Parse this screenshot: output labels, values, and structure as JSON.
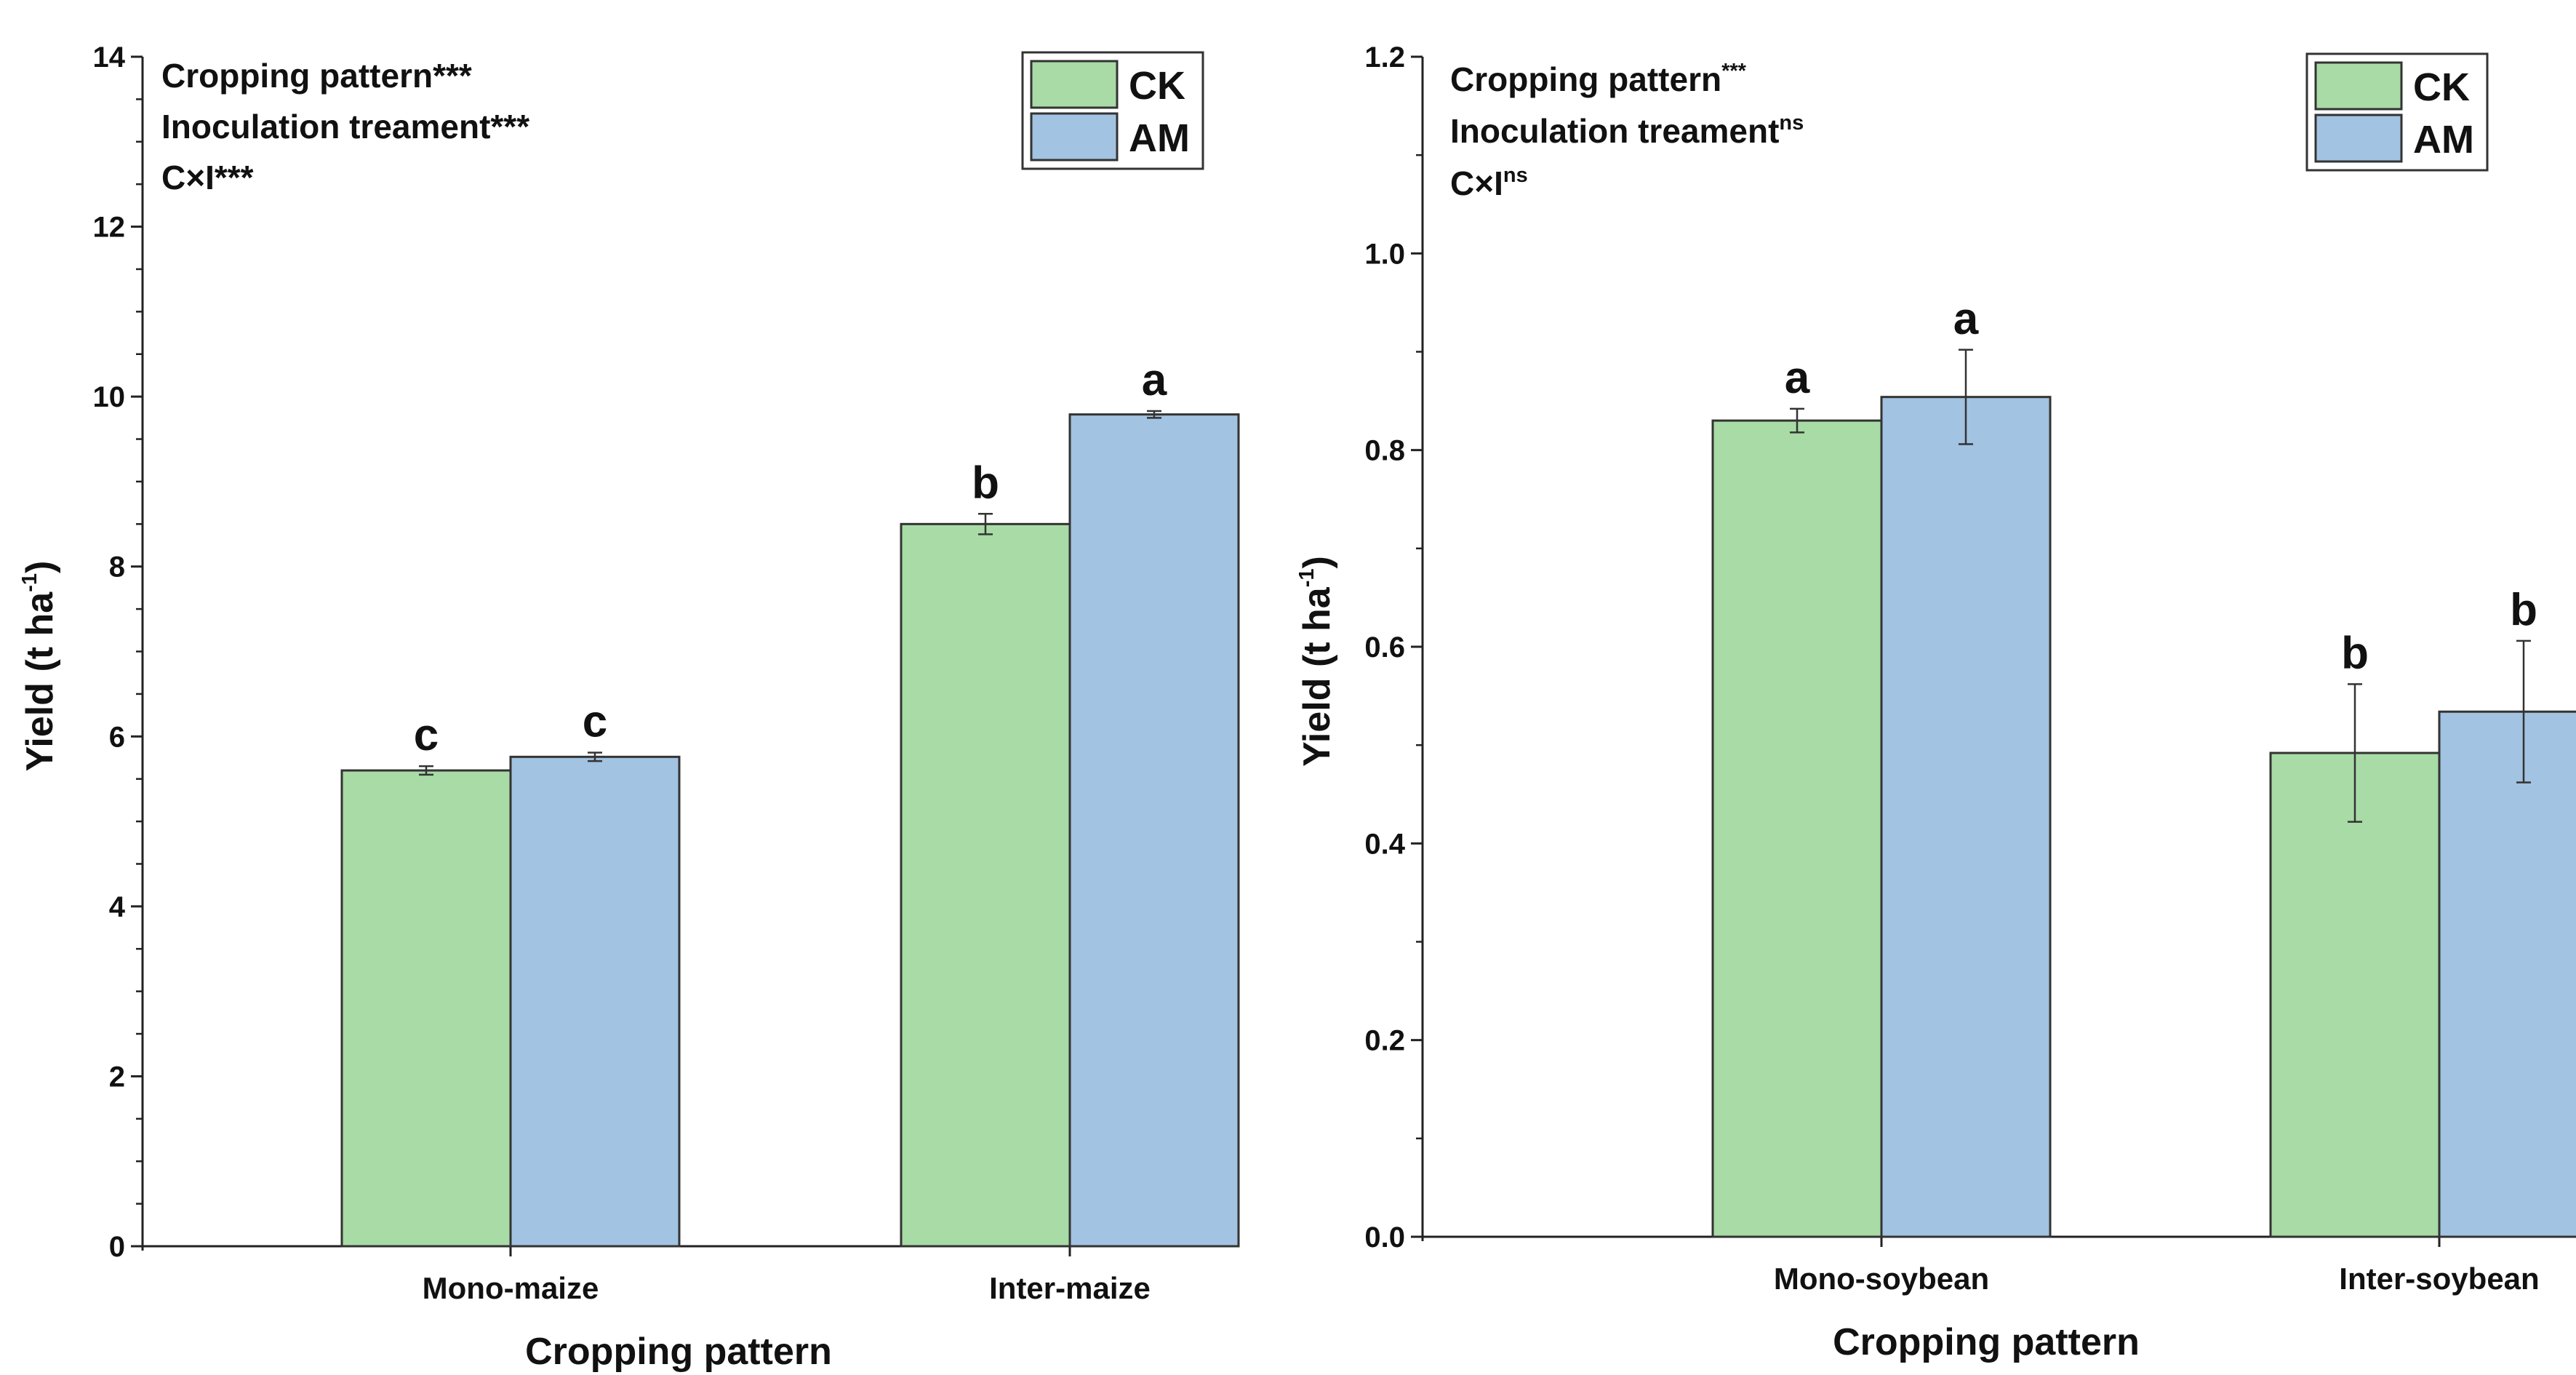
{
  "chart_data": [
    {
      "type": "bar",
      "ylabel": "Yield (t ha",
      "ylabel_sup": "-1",
      "ylabel_end": ")",
      "xlabel": "Cropping pattern",
      "ylim": [
        0,
        14
      ],
      "yticks": [
        "0",
        "2",
        "4",
        "6",
        "8",
        "10",
        "12",
        "14"
      ],
      "categories": [
        "Mono-maize",
        "Inter-maize"
      ],
      "series": [
        {
          "name": "CK",
          "values": [
            5.6,
            8.5
          ],
          "errors": [
            0.05,
            0.12
          ],
          "letters": [
            "c",
            "b"
          ]
        },
        {
          "name": "AM",
          "values": [
            5.76,
            9.79
          ],
          "errors": [
            0.05,
            0.04
          ],
          "letters": [
            "c",
            "a"
          ]
        }
      ],
      "annotations": [
        {
          "text": "Cropping pattern",
          "sup": "***",
          "style": "inline"
        },
        {
          "text": "Inoculation treament",
          "sup": "***",
          "style": "inline"
        },
        {
          "text": "C×I",
          "sup": "***",
          "style": "inline"
        }
      ],
      "legend": {
        "position": "top-right",
        "entries": [
          "CK",
          "AM"
        ]
      }
    },
    {
      "type": "bar",
      "ylabel": "Yield (t ha",
      "ylabel_sup": "-1",
      "ylabel_end": ")",
      "xlabel": "Cropping pattern",
      "ylim": [
        0,
        1.2
      ],
      "yticks": [
        "0.0",
        "0.2",
        "0.4",
        "0.6",
        "0.8",
        "1.0",
        "1.2"
      ],
      "categories": [
        "Mono-soybean",
        "Inter-soybean"
      ],
      "series": [
        {
          "name": "CK",
          "values": [
            0.83,
            0.492
          ],
          "errors": [
            0.012,
            0.07
          ],
          "letters": [
            "a",
            "b"
          ]
        },
        {
          "name": "AM",
          "values": [
            0.854,
            0.534
          ],
          "errors": [
            0.048,
            0.072
          ],
          "letters": [
            "a",
            "b"
          ]
        }
      ],
      "annotations": [
        {
          "text": "Cropping pattern",
          "sup": "***",
          "style": "superscript"
        },
        {
          "text": "Inoculation treament",
          "sup": "ns",
          "style": "superscript"
        },
        {
          "text": "C×I",
          "sup": "ns",
          "style": "superscript"
        }
      ],
      "legend": {
        "position": "top-right",
        "entries": [
          "CK",
          "AM"
        ]
      }
    }
  ],
  "colors": {
    "CK": "#a8dba5",
    "AM": "#a2c3e1",
    "outline": "#333333",
    "axis": "#222222"
  }
}
